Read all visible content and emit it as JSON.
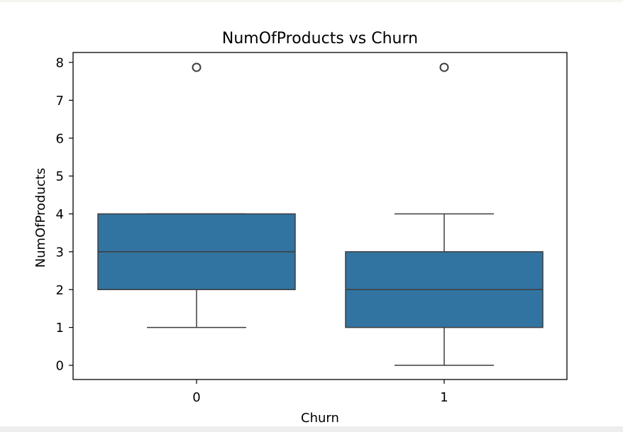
{
  "chart_data": {
    "type": "box",
    "title": "NumOfProducts vs Churn",
    "xlabel": "Churn",
    "ylabel": "NumOfProducts",
    "categories": [
      "0",
      "1"
    ],
    "y_ticks": [
      "0",
      "1",
      "2",
      "3",
      "4",
      "5",
      "6",
      "7",
      "8"
    ],
    "ylim": [
      -0.4,
      8.4
    ],
    "grid": false,
    "box_color": "#3274a1",
    "edge_color": "#3d3d3d",
    "boxes": [
      {
        "category": "0",
        "whisker_low": 1,
        "q1": 2,
        "median": 3,
        "q3": 4,
        "whisker_high": 4,
        "outliers": [
          7.87
        ]
      },
      {
        "category": "1",
        "whisker_low": 0,
        "q1": 1,
        "median": 2,
        "q3": 3,
        "whisker_high": 4,
        "outliers": [
          7.87
        ]
      }
    ]
  }
}
